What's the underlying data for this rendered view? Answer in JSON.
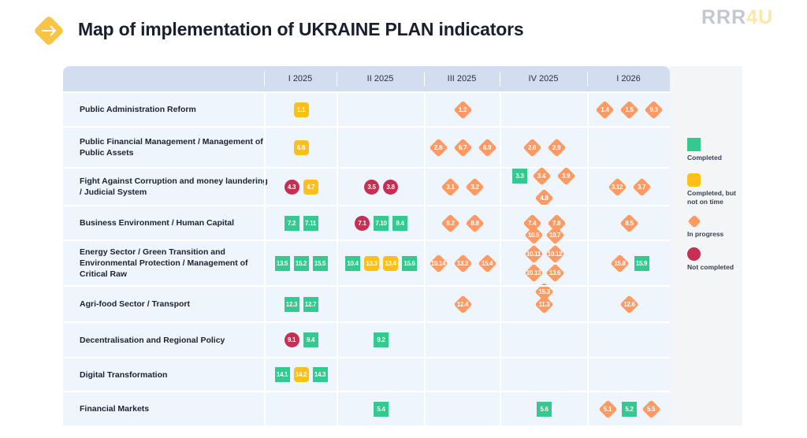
{
  "header": {
    "title": "Map of implementation of UKRAINE PLAN indicators",
    "brand_main": "RRR",
    "brand_accent": "4U"
  },
  "chart_data": {
    "type": "table",
    "title": "Map of implementation of UKRAINE PLAN indicators",
    "columns": [
      "I 2025",
      "II 2025",
      "III 2025",
      "IV 2025",
      "I 2026"
    ],
    "legend": [
      {
        "status": "completed",
        "label": "Completed",
        "color": "#34c98e"
      },
      {
        "status": "late",
        "label": "Completed, but not on time",
        "color": "#ffbf1a"
      },
      {
        "status": "progress",
        "label": "In progress",
        "color": "#ff9a62"
      },
      {
        "status": "notdone",
        "label": "Not completed",
        "color": "#c62f52"
      }
    ],
    "rows": [
      {
        "label": "Public Administration Reform",
        "cells": [
          [
            [
              "1.1",
              "late"
            ]
          ],
          [],
          [
            [
              "1.2",
              "progress"
            ]
          ],
          [],
          [
            [
              "1.4",
              "progress"
            ],
            [
              "1.5",
              "progress"
            ],
            [
              "9.3",
              "progress"
            ]
          ]
        ]
      },
      {
        "label": "Public Financial Management / Management of Public Assets",
        "cells": [
          [
            [
              "6.6",
              "late"
            ]
          ],
          [],
          [
            [
              "2.8",
              "progress"
            ],
            [
              "6.7",
              "progress"
            ],
            [
              "6.9",
              "progress"
            ]
          ],
          [
            [
              "2.6",
              "progress"
            ],
            [
              "2.9",
              "progress"
            ]
          ],
          []
        ]
      },
      {
        "label": "Fight Against Corruption and money laundering / Judicial System",
        "cells": [
          [
            [
              "4.3",
              "notdone"
            ],
            [
              "4.7",
              "late"
            ]
          ],
          [
            [
              "3.5",
              "notdone"
            ],
            [
              "3.8",
              "notdone"
            ]
          ],
          [
            [
              "3.1",
              "progress"
            ],
            [
              "3.2",
              "progress"
            ]
          ],
          [
            [
              "3.3",
              "completed"
            ],
            [
              "3.4",
              "progress"
            ],
            [
              "3.9",
              "progress"
            ],
            [
              "4.8",
              "progress"
            ]
          ],
          [
            [
              "3.12",
              "progress"
            ],
            [
              "3.7",
              "progress"
            ]
          ]
        ]
      },
      {
        "label": "Business Environment / Human Capital",
        "cells": [
          [
            [
              "7.2",
              "completed"
            ],
            [
              "7.11",
              "completed"
            ]
          ],
          [
            [
              "7.1",
              "notdone"
            ],
            [
              "7.10",
              "completed"
            ],
            [
              "8.4",
              "completed"
            ]
          ],
          [
            [
              "8.2",
              "progress"
            ],
            [
              "8.8",
              "progress"
            ]
          ],
          [
            [
              "7.4",
              "progress"
            ],
            [
              "7.8",
              "progress"
            ]
          ],
          [
            [
              "8.5",
              "progress"
            ]
          ]
        ]
      },
      {
        "label": "Energy Sector / Green Transition and Environmental Protection / Management of Critical Raw",
        "cells": [
          [
            [
              "13.5",
              "completed"
            ],
            [
              "15.2",
              "completed"
            ],
            [
              "15.5",
              "completed"
            ]
          ],
          [
            [
              "10.4",
              "completed"
            ],
            [
              "13.3",
              "late"
            ],
            [
              "13.4",
              "late"
            ],
            [
              "15.6",
              "completed"
            ]
          ],
          [
            [
              "10.14",
              "progress"
            ],
            [
              "13.2",
              "progress"
            ],
            [
              "15.4",
              "progress"
            ]
          ],
          [
            [
              "10.5",
              "progress"
            ],
            [
              "10.7",
              "progress"
            ],
            [
              "10.11",
              "progress"
            ],
            [
              "10.12",
              "progress"
            ],
            [
              "10.13",
              "progress"
            ],
            [
              "13.6",
              "progress"
            ],
            [
              "15.3",
              "progress"
            ]
          ],
          [
            [
              "15.8",
              "progress"
            ],
            [
              "15.9",
              "completed"
            ]
          ]
        ]
      },
      {
        "label": "Agri-food Sector / Transport",
        "cells": [
          [
            [
              "12.3",
              "completed"
            ],
            [
              "12.7",
              "completed"
            ]
          ],
          [],
          [
            [
              "12.4",
              "progress"
            ]
          ],
          [
            [
              "11.3",
              "progress"
            ]
          ],
          [
            [
              "12.6",
              "progress"
            ]
          ]
        ]
      },
      {
        "label": "Decentralisation and Regional Policy",
        "cells": [
          [
            [
              "9.1",
              "notdone"
            ],
            [
              "9.4",
              "completed"
            ]
          ],
          [
            [
              "9.2",
              "completed"
            ]
          ],
          [],
          [],
          []
        ]
      },
      {
        "label": "Digital Transformation",
        "cells": [
          [
            [
              "14.1",
              "completed"
            ],
            [
              "14.2",
              "late"
            ],
            [
              "14.3",
              "completed"
            ]
          ],
          [],
          [],
          [],
          []
        ]
      },
      {
        "label": "Financial Markets",
        "cells": [
          [],
          [
            [
              "5.4",
              "completed"
            ]
          ],
          [],
          [
            [
              "5.6",
              "completed"
            ]
          ],
          [
            [
              "5.1",
              "progress"
            ],
            [
              "5.2",
              "completed"
            ],
            [
              "5.5",
              "progress"
            ]
          ]
        ]
      }
    ]
  }
}
